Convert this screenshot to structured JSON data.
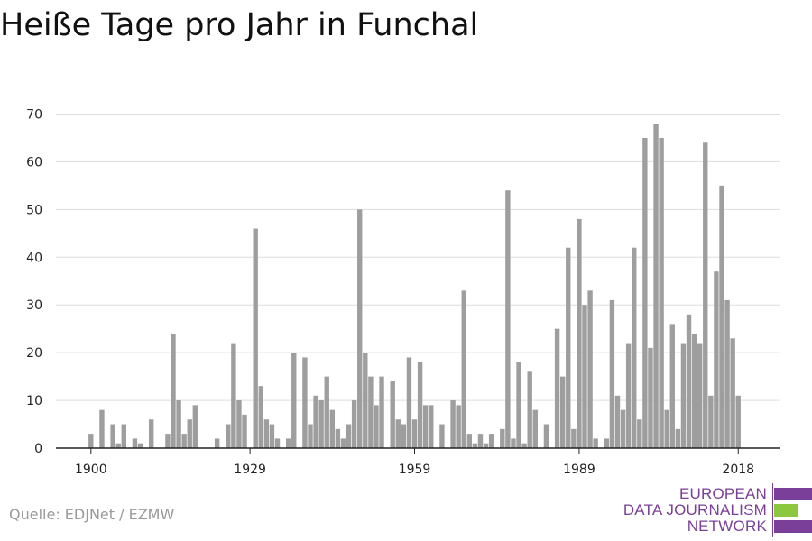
{
  "header": {
    "title": "Heiße Tage pro Jahr in Funchal"
  },
  "footer": {
    "source": "Quelle: EDJNet / EZMW"
  },
  "logo": {
    "lines": [
      "EUROPEAN",
      "DATA JOURNALISM",
      "NETWORK"
    ],
    "colors": {
      "text": "#7a3f98",
      "bar_top": "#7a3f98",
      "bar_middle": "#8dc63f",
      "bar_bottom": "#7a3f98"
    }
  },
  "chart_data": {
    "type": "bar",
    "title": "Heiße Tage pro Jahr in Funchal",
    "xlabel": "",
    "ylabel": "",
    "ylim": [
      0,
      70
    ],
    "yticks": [
      0,
      10,
      20,
      30,
      40,
      50,
      60,
      70
    ],
    "xticks": [
      1900,
      1929,
      1959,
      1989,
      2018
    ],
    "grid": true,
    "bar_color": "#9e9e9e",
    "x": [
      1900,
      1901,
      1902,
      1903,
      1904,
      1905,
      1906,
      1907,
      1908,
      1909,
      1910,
      1911,
      1912,
      1913,
      1914,
      1915,
      1916,
      1917,
      1918,
      1919,
      1920,
      1921,
      1922,
      1923,
      1924,
      1925,
      1926,
      1927,
      1928,
      1929,
      1930,
      1931,
      1932,
      1933,
      1934,
      1935,
      1936,
      1937,
      1938,
      1939,
      1940,
      1941,
      1942,
      1943,
      1944,
      1945,
      1946,
      1947,
      1948,
      1949,
      1950,
      1951,
      1952,
      1953,
      1954,
      1955,
      1956,
      1957,
      1958,
      1959,
      1960,
      1961,
      1962,
      1963,
      1964,
      1965,
      1966,
      1967,
      1968,
      1969,
      1970,
      1971,
      1972,
      1973,
      1974,
      1975,
      1976,
      1977,
      1978,
      1979,
      1980,
      1981,
      1982,
      1983,
      1984,
      1985,
      1986,
      1987,
      1988,
      1989,
      1990,
      1991,
      1992,
      1993,
      1994,
      1995,
      1996,
      1997,
      1998,
      1999,
      2000,
      2001,
      2002,
      2003,
      2004,
      2005,
      2006,
      2007,
      2008,
      2009,
      2010,
      2011,
      2012,
      2013,
      2014,
      2015,
      2016,
      2017,
      2018
    ],
    "values": [
      3,
      0,
      8,
      0,
      5,
      1,
      5,
      0,
      2,
      1,
      0,
      6,
      0,
      0,
      3,
      24,
      10,
      3,
      6,
      9,
      0,
      0,
      0,
      2,
      0,
      5,
      22,
      10,
      7,
      0,
      46,
      13,
      6,
      5,
      2,
      0,
      2,
      20,
      0,
      19,
      5,
      11,
      10,
      15,
      8,
      4,
      2,
      5,
      10,
      50,
      20,
      15,
      9,
      15,
      0,
      14,
      6,
      5,
      19,
      6,
      18,
      9,
      9,
      0,
      5,
      0,
      10,
      9,
      33,
      3,
      1,
      3,
      1,
      3,
      0,
      4,
      54,
      2,
      18,
      1,
      16,
      8,
      0,
      5,
      0,
      25,
      15,
      42,
      4,
      48,
      30,
      33,
      2,
      0,
      2,
      31,
      11,
      8,
      22,
      42,
      6,
      65,
      21,
      68,
      65,
      8,
      26,
      4,
      22,
      28,
      24,
      22,
      64,
      11,
      37,
      55,
      31,
      23,
      11
    ]
  }
}
